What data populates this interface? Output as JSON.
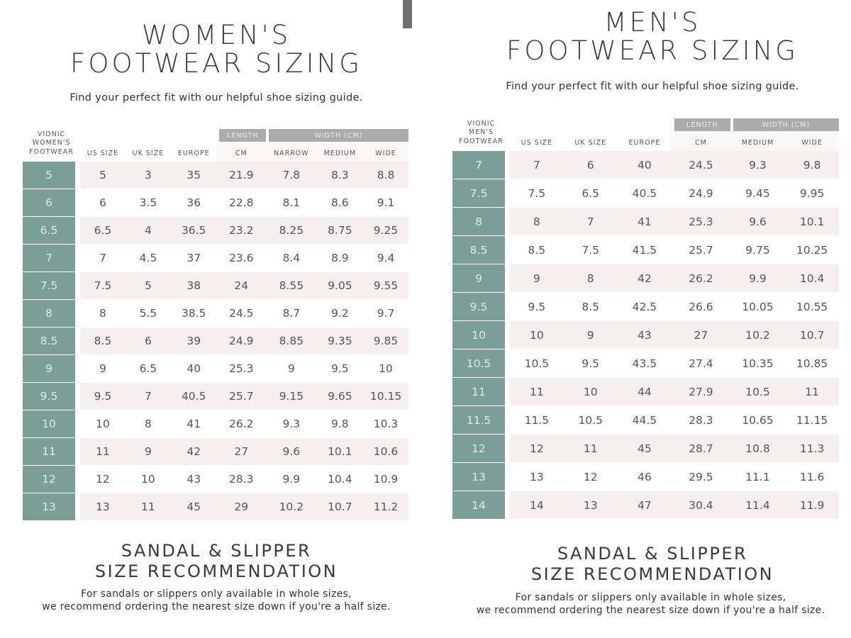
{
  "women": {
    "title_line1": "WOMEN'S",
    "title_line2": "FOOTWEAR SIZING",
    "subtitle": "Find your perfect fit with our helpful shoe sizing guide.",
    "group_headers": {
      "length": "LENGTH",
      "width": "WIDTH (CM)"
    },
    "stub_header": [
      "VIONIC",
      "WOMEN'S",
      "FOOTWEAR"
    ],
    "columns": [
      "US SIZE",
      "UK SIZE",
      "EUROPE",
      "CM",
      "NARROW",
      "MEDIUM",
      "WIDE"
    ],
    "rows": [
      [
        "5",
        "5",
        "3",
        "35",
        "21.9",
        "7.8",
        "8.3",
        "8.8"
      ],
      [
        "6",
        "6",
        "3.5",
        "36",
        "22.8",
        "8.1",
        "8.6",
        "9.1"
      ],
      [
        "6.5",
        "6.5",
        "4",
        "36.5",
        "23.2",
        "8.25",
        "8.75",
        "9.25"
      ],
      [
        "7",
        "7",
        "4.5",
        "37",
        "23.6",
        "8.4",
        "8.9",
        "9.4"
      ],
      [
        "7.5",
        "7.5",
        "5",
        "38",
        "24",
        "8.55",
        "9.05",
        "9.55"
      ],
      [
        "8",
        "8",
        "5.5",
        "38.5",
        "24.5",
        "8.7",
        "9.2",
        "9.7"
      ],
      [
        "8.5",
        "8.5",
        "6",
        "39",
        "24.9",
        "8.85",
        "9.35",
        "9.85"
      ],
      [
        "9",
        "9",
        "6.5",
        "40",
        "25.3",
        "9",
        "9.5",
        "10"
      ],
      [
        "9.5",
        "9.5",
        "7",
        "40.5",
        "25.7",
        "9.15",
        "9.65",
        "10.15"
      ],
      [
        "10",
        "10",
        "8",
        "41",
        "26.2",
        "9.3",
        "9.8",
        "10.3"
      ],
      [
        "11",
        "11",
        "9",
        "42",
        "27",
        "9.6",
        "10.1",
        "10.6"
      ],
      [
        "12",
        "12",
        "10",
        "43",
        "28.3",
        "9.9",
        "10.4",
        "10.9"
      ],
      [
        "13",
        "13",
        "11",
        "45",
        "29",
        "10.2",
        "10.7",
        "11.2"
      ]
    ],
    "sandal_title_line1": "SANDAL & SLIPPER",
    "sandal_title_line2": "SIZE RECOMMENDATION",
    "sandal_text_line1": "For sandals or slippers only available in whole sizes,",
    "sandal_text_line2": "we recommend ordering the nearest size down if you're a half size."
  },
  "men": {
    "title_line1": "MEN'S",
    "title_line2": "FOOTWEAR SIZING",
    "subtitle": "Find your perfect fit with our helpful shoe sizing guide.",
    "group_headers": {
      "length": "LENGTH",
      "width": "WIDTH (CM)"
    },
    "stub_header": [
      "VIONIC",
      "MEN'S",
      "FOOTWEAR"
    ],
    "columns": [
      "US SIZE",
      "UK SIZE",
      "EUROPE",
      "CM",
      "MEDIUM",
      "WIDE"
    ],
    "rows": [
      [
        "7",
        "7",
        "6",
        "40",
        "24.5",
        "9.3",
        "9.8"
      ],
      [
        "7.5",
        "7.5",
        "6.5",
        "40.5",
        "24.9",
        "9.45",
        "9.95"
      ],
      [
        "8",
        "8",
        "7",
        "41",
        "25.3",
        "9.6",
        "10.1"
      ],
      [
        "8.5",
        "8.5",
        "7.5",
        "41.5",
        "25.7",
        "9.75",
        "10.25"
      ],
      [
        "9",
        "9",
        "8",
        "42",
        "26.2",
        "9.9",
        "10.4"
      ],
      [
        "9.5",
        "9.5",
        "8.5",
        "42.5",
        "26.6",
        "10.05",
        "10.55"
      ],
      [
        "10",
        "10",
        "9",
        "43",
        "27",
        "10.2",
        "10.7"
      ],
      [
        "10.5",
        "10.5",
        "9.5",
        "43.5",
        "27.4",
        "10.35",
        "10.85"
      ],
      [
        "11",
        "11",
        "10",
        "44",
        "27.9",
        "10.5",
        "11"
      ],
      [
        "11.5",
        "11.5",
        "10.5",
        "44.5",
        "28.3",
        "10.65",
        "11.15"
      ],
      [
        "12",
        "12",
        "11",
        "45",
        "28.7",
        "10.8",
        "11.3"
      ],
      [
        "13",
        "13",
        "12",
        "46",
        "29.5",
        "11.1",
        "11.6"
      ],
      [
        "14",
        "14",
        "13",
        "47",
        "30.4",
        "11.4",
        "11.9"
      ]
    ],
    "sandal_title_line1": "SANDAL & SLIPPER",
    "sandal_title_line2": "SIZE RECOMMENDATION",
    "sandal_text_line1": "For sandals or slippers only available in whole sizes,",
    "sandal_text_line2": "we recommend ordering the nearest size down if you're a half size."
  },
  "colors": {
    "sidebar": "#7b9f97",
    "row_alt": "#f5f0ed",
    "header_group": "#ababab"
  }
}
